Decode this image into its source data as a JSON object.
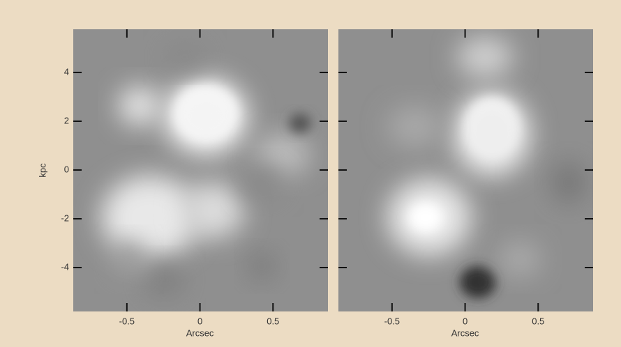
{
  "figure": {
    "panels": [
      {
        "xlabel": "Arcsec",
        "ylabel": "kpc",
        "xlim": [
          -0.867,
          0.876
        ],
        "ylim": [
          -5.8,
          5.77
        ],
        "xticks": [
          -0.5,
          0,
          0.5
        ],
        "yticks": [
          4,
          2,
          0,
          -2,
          -4
        ]
      },
      {
        "xlabel": "Arcsec",
        "xlim": [
          -0.867,
          0.876
        ],
        "ylim": [
          -5.8,
          5.77
        ],
        "xticks": [
          -0.5,
          0,
          0.5
        ],
        "yticks": [
          4,
          2,
          0,
          -2,
          -4
        ]
      }
    ]
  }
}
